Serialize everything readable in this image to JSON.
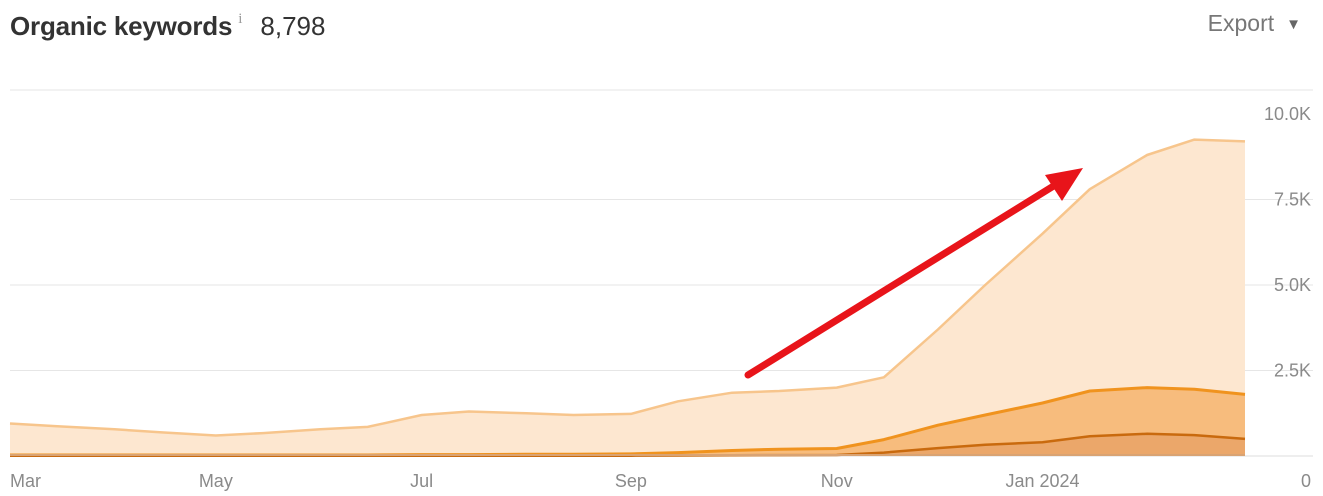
{
  "header": {
    "title": "Organic keywords",
    "info_glyph": "i",
    "total": "8,798",
    "export_label": "Export",
    "export_caret": "▼"
  },
  "chart_data": {
    "type": "area",
    "title": "Organic keywords",
    "ylim": [
      0,
      10000
    ],
    "x_ticks": [
      "Mar",
      "May",
      "Jul",
      "Sep",
      "Nov",
      "Jan 2024"
    ],
    "y_ticks": [
      "0",
      "2.5K",
      "5.0K",
      "7.5K",
      "10.0K"
    ],
    "grid": true,
    "legend": "none",
    "colors": {
      "top": "#f7c58c",
      "top_fill": "#fde7d0",
      "mid": "#f0931e",
      "mid_fill": "#f6b46f",
      "low": "#c96a0e",
      "low_fill": "#e9a366",
      "base": "#d9a373",
      "annotation_arrow": "#e8141a"
    },
    "x_dates": [
      "2023-03-01",
      "2023-03-15",
      "2023-04-01",
      "2023-04-15",
      "2023-05-01",
      "2023-05-15",
      "2023-06-01",
      "2023-06-15",
      "2023-07-01",
      "2023-07-15",
      "2023-08-01",
      "2023-08-15",
      "2023-09-01",
      "2023-09-15",
      "2023-10-01",
      "2023-10-15",
      "2023-11-01",
      "2023-11-15",
      "2023-12-01",
      "2023-12-15",
      "2024-01-01",
      "2024-01-15",
      "2024-02-01",
      "2024-02-15",
      "2024-03-01"
    ],
    "series": [
      {
        "values": [
          950,
          870,
          780,
          690,
          600,
          670,
          780,
          850,
          1200,
          1300,
          1250,
          1200,
          1230,
          1600,
          1850,
          1900,
          2000,
          2300,
          3700,
          5000,
          6500,
          7800,
          8800,
          9250,
          9200
        ]
      },
      {
        "values": [
          30,
          30,
          30,
          30,
          30,
          30,
          30,
          30,
          40,
          40,
          50,
          50,
          60,
          100,
          160,
          200,
          220,
          480,
          900,
          1200,
          1550,
          1900,
          2000,
          1950,
          1800
        ]
      },
      {
        "values": [
          10,
          10,
          10,
          10,
          10,
          10,
          10,
          10,
          10,
          10,
          10,
          10,
          10,
          15,
          20,
          25,
          30,
          100,
          230,
          330,
          400,
          580,
          650,
          610,
          500
        ]
      }
    ]
  }
}
